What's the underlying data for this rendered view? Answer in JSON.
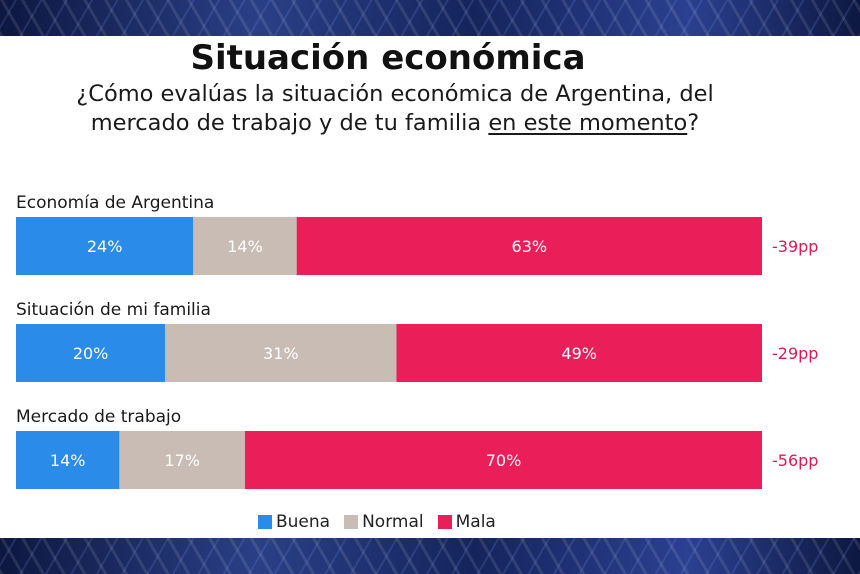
{
  "chart_data": {
    "type": "bar",
    "orientation": "horizontal",
    "stacked": true,
    "title": "Situación económica",
    "subtitle_part1": "¿Cómo evalúas la situación económica de Argentina, del mercado de trabajo y de tu familia ",
    "subtitle_emphasis": "en este momento",
    "subtitle_part2": "?",
    "categories": [
      "Economía de Argentina",
      "Situación de mi familia",
      "Mercado de trabajo"
    ],
    "series": [
      {
        "name": "Buena",
        "color": "#2b8be8",
        "values": [
          24,
          20,
          14
        ],
        "labels": [
          "24%",
          "20%",
          "14%"
        ]
      },
      {
        "name": "Normal",
        "color": "#c9bcb4",
        "values": [
          14,
          31,
          17
        ],
        "labels": [
          "14%",
          "31%",
          "17%"
        ]
      },
      {
        "name": "Mala",
        "color": "#ea1f5a",
        "values": [
          63,
          49,
          70
        ],
        "labels": [
          "63%",
          "49%",
          "70%"
        ]
      }
    ],
    "net_labels": [
      "-39pp",
      "-29pp",
      "-56pp"
    ],
    "net_color": "#d81b55",
    "legend_position": "bottom"
  }
}
